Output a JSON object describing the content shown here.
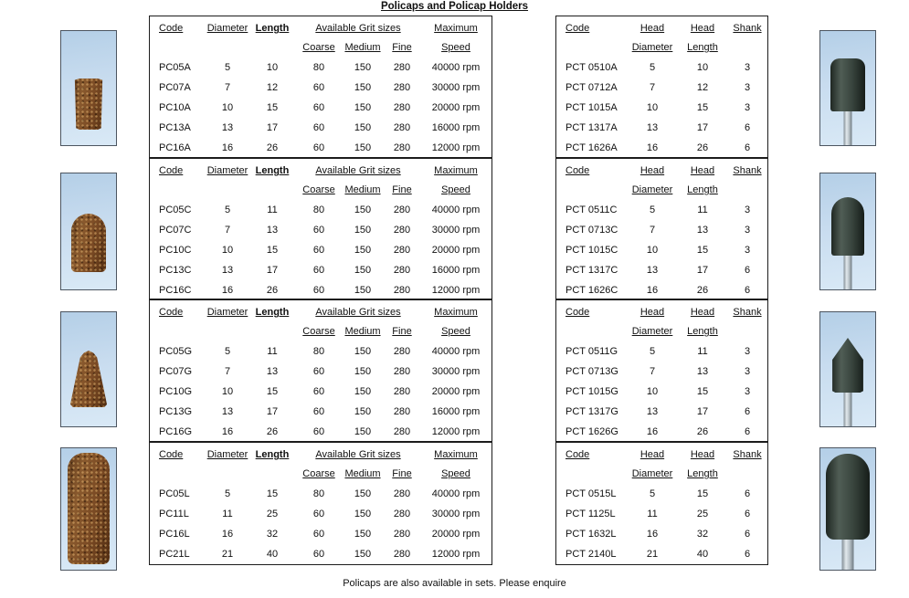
{
  "page": {
    "title": "Policaps and Policap Holders",
    "footer": "Policaps are also available in sets. Please enquire"
  },
  "colors": {
    "photo_background": "#c3d9ec",
    "policap_brown": "#7a4b26",
    "holder_head_dark": "#39453e",
    "shank_steel": "#b9c3c9",
    "text": "#111111",
    "table_border": "#1c1c1c"
  },
  "cap_header": {
    "code": "Code",
    "diameter": "Diameter",
    "length": "Length",
    "grit_group": "Available Grit sizes",
    "coarse": "Coarse",
    "medium": "Medium",
    "fine": "Fine",
    "maximum": "Maximum",
    "speed": "Speed"
  },
  "holder_header": {
    "code": "Code",
    "head_a": "Head",
    "head_b": "Head",
    "shank": "Shank",
    "diameter": "Diameter",
    "length": "Length"
  },
  "cap_tables": [
    {
      "series": "A",
      "rows": [
        [
          "PC05A",
          "5",
          "10",
          "80",
          "150",
          "280",
          "40000 rpm"
        ],
        [
          "PC07A",
          "7",
          "12",
          "60",
          "150",
          "280",
          "30000 rpm"
        ],
        [
          "PC10A",
          "10",
          "15",
          "60",
          "150",
          "280",
          "20000 rpm"
        ],
        [
          "PC13A",
          "13",
          "17",
          "60",
          "150",
          "280",
          "16000 rpm"
        ],
        [
          "PC16A",
          "16",
          "26",
          "60",
          "150",
          "280",
          "12000 rpm"
        ]
      ]
    },
    {
      "series": "C",
      "rows": [
        [
          "PC05C",
          "5",
          "11",
          "80",
          "150",
          "280",
          "40000 rpm"
        ],
        [
          "PC07C",
          "7",
          "13",
          "60",
          "150",
          "280",
          "30000 rpm"
        ],
        [
          "PC10C",
          "10",
          "15",
          "60",
          "150",
          "280",
          "20000 rpm"
        ],
        [
          "PC13C",
          "13",
          "17",
          "60",
          "150",
          "280",
          "16000 rpm"
        ],
        [
          "PC16C",
          "16",
          "26",
          "60",
          "150",
          "280",
          "12000 rpm"
        ]
      ]
    },
    {
      "series": "G",
      "rows": [
        [
          "PC05G",
          "5",
          "11",
          "80",
          "150",
          "280",
          "40000 rpm"
        ],
        [
          "PC07G",
          "7",
          "13",
          "60",
          "150",
          "280",
          "30000 rpm"
        ],
        [
          "PC10G",
          "10",
          "15",
          "60",
          "150",
          "280",
          "20000 rpm"
        ],
        [
          "PC13G",
          "13",
          "17",
          "60",
          "150",
          "280",
          "16000 rpm"
        ],
        [
          "PC16G",
          "16",
          "26",
          "60",
          "150",
          "280",
          "12000 rpm"
        ]
      ]
    },
    {
      "series": "L",
      "rows": [
        [
          "PC05L",
          "5",
          "15",
          "80",
          "150",
          "280",
          "40000 rpm"
        ],
        [
          "PC11L",
          "11",
          "25",
          "60",
          "150",
          "280",
          "30000 rpm"
        ],
        [
          "PC16L",
          "16",
          "32",
          "60",
          "150",
          "280",
          "20000 rpm"
        ],
        [
          "PC21L",
          "21",
          "40",
          "60",
          "150",
          "280",
          "12000 rpm"
        ]
      ]
    }
  ],
  "holder_tables": [
    {
      "series": "A",
      "rows": [
        [
          "PCT 0510A",
          "5",
          "10",
          "3"
        ],
        [
          "PCT 0712A",
          "7",
          "12",
          "3"
        ],
        [
          "PCT 1015A",
          "10",
          "15",
          "3"
        ],
        [
          "PCT 1317A",
          "13",
          "17",
          "6"
        ],
        [
          "PCT 1626A",
          "16",
          "26",
          "6"
        ]
      ]
    },
    {
      "series": "C",
      "rows": [
        [
          "PCT 0511C",
          "5",
          "11",
          "3"
        ],
        [
          "PCT 0713C",
          "7",
          "13",
          "3"
        ],
        [
          "PCT 1015C",
          "10",
          "15",
          "3"
        ],
        [
          "PCT 1317C",
          "13",
          "17",
          "6"
        ],
        [
          "PCT 1626C",
          "16",
          "26",
          "6"
        ]
      ]
    },
    {
      "series": "G",
      "rows": [
        [
          "PCT 0511G",
          "5",
          "11",
          "3"
        ],
        [
          "PCT 0713G",
          "7",
          "13",
          "3"
        ],
        [
          "PCT 1015G",
          "10",
          "15",
          "3"
        ],
        [
          "PCT 1317G",
          "13",
          "17",
          "6"
        ],
        [
          "PCT 1626G",
          "16",
          "26",
          "6"
        ]
      ]
    },
    {
      "series": "L",
      "rows": [
        [
          "PCT 0515L",
          "5",
          "15",
          "6"
        ],
        [
          "PCT 1125L",
          "11",
          "25",
          "6"
        ],
        [
          "PCT 1632L",
          "16",
          "32",
          "6"
        ],
        [
          "PCT 2140L",
          "21",
          "40",
          "6"
        ]
      ]
    }
  ],
  "photos": {
    "left": [
      {
        "name": "policap-a-photo",
        "shape": "tapered-cylinder-abrasive-cap"
      },
      {
        "name": "policap-c-photo",
        "shape": "round-top-abrasive-cap"
      },
      {
        "name": "policap-g-photo",
        "shape": "pointed-abrasive-cap"
      },
      {
        "name": "policap-l-photo",
        "shape": "long-cylinder-abrasive-cap"
      }
    ],
    "right": [
      {
        "name": "holder-a-photo",
        "shape": "cylinder-head-mandrel"
      },
      {
        "name": "holder-c-photo",
        "shape": "dome-head-mandrel"
      },
      {
        "name": "holder-g-photo",
        "shape": "pointed-head-mandrel"
      },
      {
        "name": "holder-l-photo",
        "shape": "large-dome-head-mandrel"
      }
    ]
  }
}
